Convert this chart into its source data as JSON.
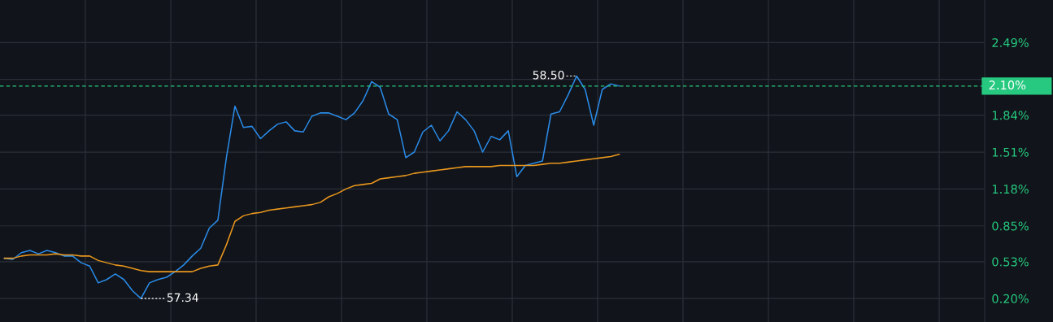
{
  "chart_data": {
    "type": "line",
    "categories": [
      null,
      null,
      null,
      null,
      null,
      null,
      null,
      null,
      null,
      null,
      null,
      null,
      null,
      null,
      null,
      null,
      null,
      null,
      null,
      null,
      null,
      null,
      null,
      null,
      null,
      null,
      null,
      null,
      null,
      null,
      null,
      null,
      null,
      null,
      null,
      null,
      null,
      null,
      null,
      null,
      null,
      null,
      null,
      null,
      null,
      null,
      null,
      null,
      null,
      null,
      null,
      null,
      null,
      null,
      null,
      null,
      null,
      null,
      null,
      null,
      null,
      null,
      null,
      null,
      null,
      null,
      null,
      null,
      null,
      null,
      null,
      null,
      null
    ],
    "series": [
      {
        "color": "#2a8be8",
        "values": [
          0.56,
          0.55,
          0.61,
          0.63,
          0.6,
          0.63,
          0.61,
          0.58,
          0.58,
          0.52,
          0.49,
          0.34,
          0.37,
          0.42,
          0.37,
          0.27,
          0.2,
          0.34,
          0.37,
          0.39,
          0.44,
          0.5,
          0.58,
          0.65,
          0.83,
          0.9,
          1.46,
          1.92,
          1.73,
          1.74,
          1.63,
          1.7,
          1.76,
          1.78,
          1.7,
          1.69,
          1.83,
          1.86,
          1.86,
          1.83,
          1.8,
          1.86,
          1.97,
          2.14,
          2.09,
          1.85,
          1.8,
          1.46,
          1.51,
          1.69,
          1.75,
          1.61,
          1.7,
          1.87,
          1.8,
          1.7,
          1.51,
          1.65,
          1.62,
          1.7,
          1.29,
          1.39,
          1.41,
          1.43,
          1.85,
          1.87,
          2.02,
          2.19,
          2.07,
          1.75,
          2.07,
          2.12,
          2.1
        ]
      },
      {
        "type": "line",
        "color": "#e8961e",
        "values": [
          0.56,
          0.56,
          0.58,
          0.59,
          0.59,
          0.59,
          0.6,
          0.59,
          0.59,
          0.58,
          0.58,
          0.54,
          0.52,
          0.5,
          0.49,
          0.47,
          0.45,
          0.44,
          0.44,
          0.44,
          0.44,
          0.44,
          0.44,
          0.47,
          0.49,
          0.5,
          0.68,
          0.89,
          0.94,
          0.96,
          0.97,
          0.99,
          1.0,
          1.01,
          1.02,
          1.03,
          1.04,
          1.06,
          1.11,
          1.14,
          1.18,
          1.21,
          1.22,
          1.23,
          1.27,
          1.28,
          1.29,
          1.3,
          1.32,
          1.33,
          1.34,
          1.35,
          1.36,
          1.37,
          1.38,
          1.38,
          1.38,
          1.38,
          1.39,
          1.39,
          1.39,
          1.39,
          1.39,
          1.4,
          1.41,
          1.41,
          1.42,
          1.43,
          1.44,
          1.45,
          1.46,
          1.47,
          1.49
        ]
      }
    ],
    "ylim": [
      -0.01,
      2.87
    ],
    "yticks": [
      {
        "value": 0.2,
        "label": "0.20%"
      },
      {
        "value": 0.53,
        "label": "0.53%"
      },
      {
        "value": 0.85,
        "label": "0.85%"
      },
      {
        "value": 1.18,
        "label": "1.18%"
      },
      {
        "value": 1.51,
        "label": "1.51%"
      },
      {
        "value": 1.84,
        "label": "1.84%"
      },
      {
        "value": 2.16,
        "label": null
      },
      {
        "value": 2.49,
        "label": "2.49%"
      }
    ],
    "ref_lines": [
      {
        "axis": "y",
        "value": 2.1,
        "label": "2.10%",
        "color": "#26c97f",
        "line_style": "dashed"
      }
    ],
    "annotations": [
      "57.34",
      "58.50"
    ],
    "grid": true,
    "tick_labels": "y",
    "line_style": "solid",
    "marker": "none"
  }
}
